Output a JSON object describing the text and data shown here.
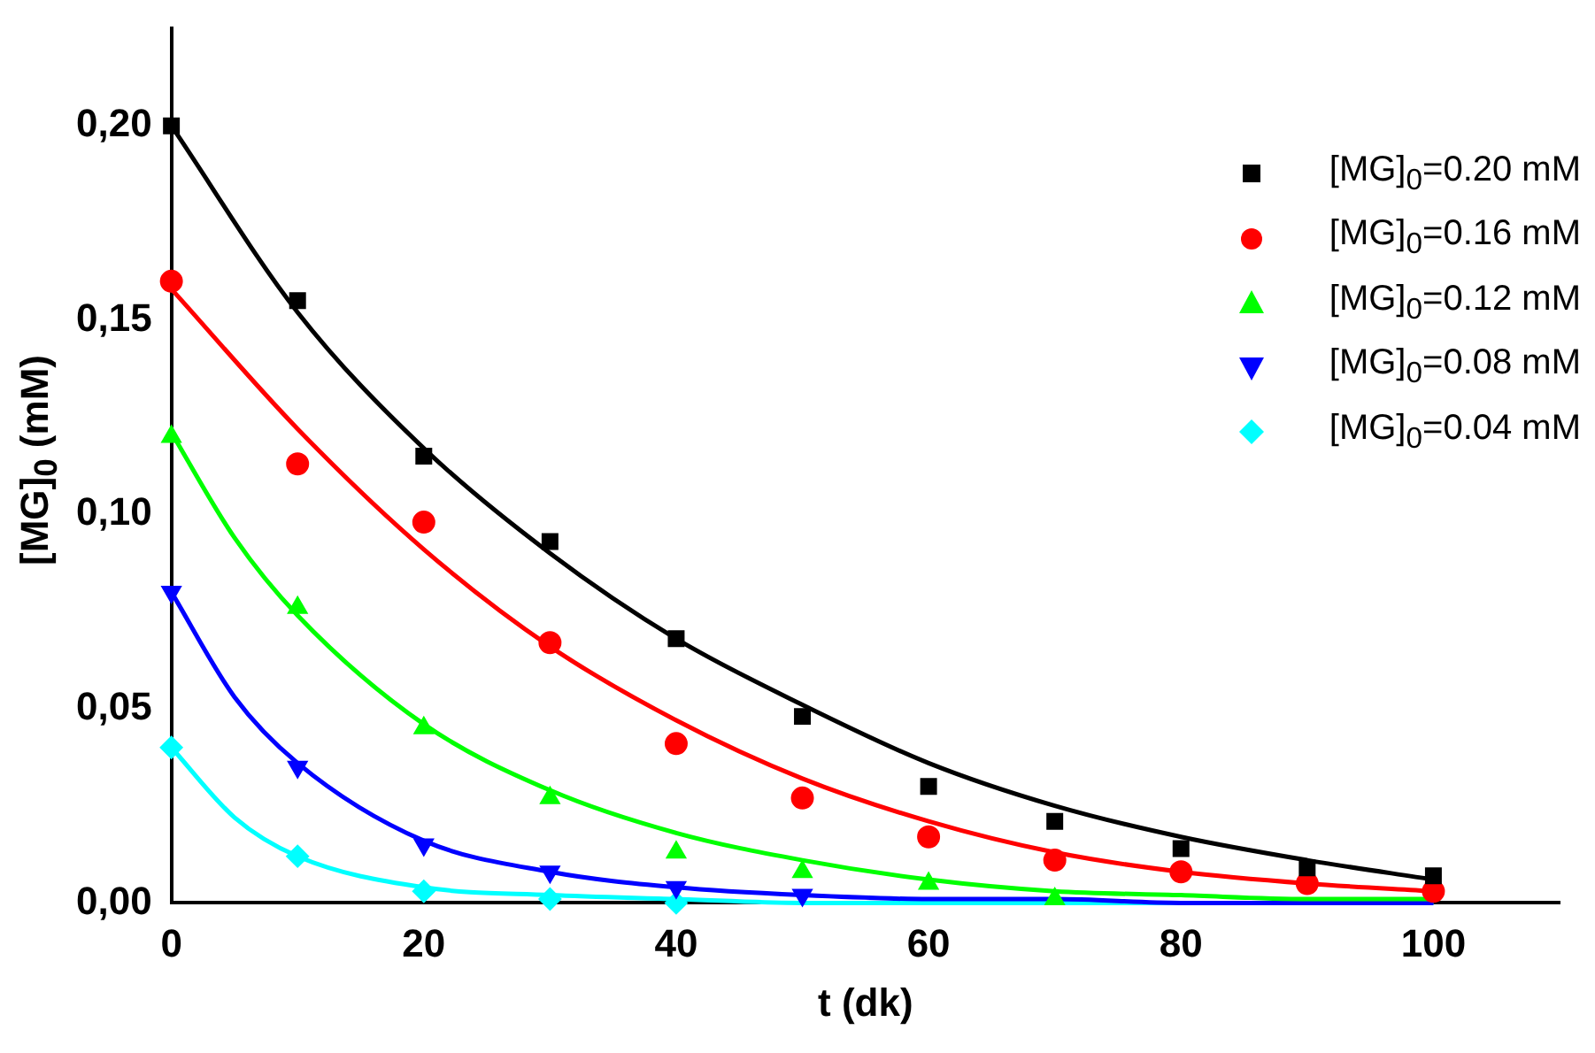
{
  "chart_data": {
    "type": "scatter",
    "xlabel": "t (dk)",
    "ylabel": "[MG]$_{0}$ (mM)",
    "xlim": [
      0,
      110
    ],
    "xticks": [
      0,
      20,
      40,
      60,
      80,
      100
    ],
    "ylim": [
      0,
      0.225
    ],
    "yticks": [
      {
        "value": 0,
        "label": "0,00"
      },
      {
        "value": 0.05,
        "label": "0,05"
      },
      {
        "value": 0.1,
        "label": "0,10"
      },
      {
        "value": 0.15,
        "label": "0,15"
      },
      {
        "value": 0.2,
        "label": "0,20"
      }
    ],
    "grid": false,
    "legend": "top right",
    "series": [
      {
        "name": "[MG]$_{0}$=0.20 mM",
        "color": "#000000",
        "marker": "square",
        "x": [
          0,
          10,
          20,
          30,
          40,
          50,
          60,
          70,
          80,
          90,
          100
        ],
        "values": [
          0.2,
          0.155,
          0.115,
          0.093,
          0.068,
          0.048,
          0.03,
          0.021,
          0.014,
          0.009,
          0.007
        ]
      },
      {
        "name": "[MG]$_{0}$=0.16 mM",
        "color": "#ff0000",
        "marker": "circle",
        "x": [
          0,
          10,
          20,
          30,
          40,
          50,
          60,
          70,
          80,
          90,
          100
        ],
        "values": [
          0.16,
          0.113,
          0.098,
          0.067,
          0.041,
          0.027,
          0.017,
          0.011,
          0.008,
          0.005,
          0.003
        ]
      },
      {
        "name": "[MG]$_{0}$=0.12 mM",
        "color": "#00ff00",
        "marker": "triangle",
        "x": [
          0,
          10,
          20,
          30,
          40,
          50,
          60,
          70
        ],
        "values": [
          0.12,
          0.076,
          0.045,
          0.027,
          0.013,
          0.008,
          0.005,
          0.001
        ]
      },
      {
        "name": "[MG]$_{0}$=0.08 mM",
        "color": "#0000ff",
        "marker": "triangle-down",
        "x": [
          0,
          10,
          20,
          30,
          40,
          50
        ],
        "values": [
          0.08,
          0.035,
          0.015,
          0.008,
          0.004,
          0.002
        ]
      },
      {
        "name": "[MG]$_{0}$=0.04 mM",
        "color": "#00ffff",
        "marker": "diamond",
        "x": [
          0,
          10,
          20,
          30,
          40
        ],
        "values": [
          0.04,
          0.012,
          0.003,
          0.001,
          0.0
        ]
      },
      {
        "type": "line",
        "color": "#000000",
        "marker": "none",
        "x": [
          0,
          10,
          20,
          30,
          40,
          50,
          60,
          70,
          80,
          90,
          100
        ],
        "values": [
          0.2,
          0.152,
          0.117,
          0.09,
          0.068,
          0.051,
          0.036,
          0.025,
          0.017,
          0.011,
          0.006
        ]
      },
      {
        "type": "line",
        "color": "#ff0000",
        "marker": "none",
        "x": [
          0,
          10,
          20,
          30,
          40,
          50,
          60,
          70,
          80,
          90,
          100
        ],
        "values": [
          0.158,
          0.122,
          0.091,
          0.066,
          0.047,
          0.032,
          0.021,
          0.013,
          0.008,
          0.005,
          0.003
        ]
      },
      {
        "type": "line",
        "color": "#00ff00",
        "marker": "none",
        "x": [
          0,
          5,
          10,
          20,
          30,
          40,
          50,
          60,
          70,
          80,
          90,
          100
        ],
        "values": [
          0.121,
          0.094,
          0.074,
          0.046,
          0.029,
          0.018,
          0.011,
          0.006,
          0.003,
          0.002,
          0.001,
          0.001
        ]
      },
      {
        "type": "line",
        "color": "#0000ff",
        "marker": "none",
        "x": [
          0,
          5,
          10,
          20,
          30,
          40,
          50,
          60,
          70,
          80,
          90,
          100
        ],
        "values": [
          0.08,
          0.053,
          0.036,
          0.016,
          0.008,
          0.004,
          0.002,
          0.001,
          0.001,
          0.0,
          0.0,
          0.0
        ]
      },
      {
        "type": "line",
        "color": "#00ffff",
        "marker": "none",
        "x": [
          0,
          5,
          10,
          20,
          30,
          40,
          50,
          60,
          70,
          80,
          90,
          100
        ],
        "values": [
          0.04,
          0.022,
          0.012,
          0.004,
          0.002,
          0.001,
          0.0,
          0.0,
          0.0,
          0.0,
          0.0,
          0.0
        ]
      }
    ]
  }
}
